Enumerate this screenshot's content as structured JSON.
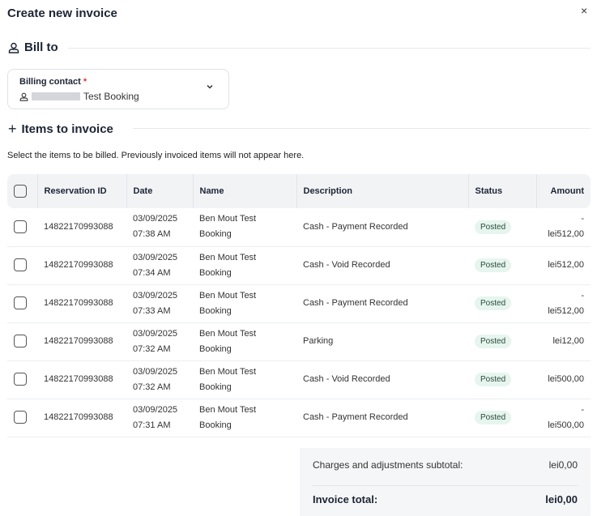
{
  "dialog": {
    "title": "Create new invoice",
    "close_icon": "×"
  },
  "bill_to": {
    "heading": "Bill to",
    "contact_label": "Billing contact",
    "required_mark": "*",
    "contact_value": "Test Booking"
  },
  "items": {
    "heading": "Items to invoice",
    "hint": "Select the items to be billed. Previously invoiced items will not appear here."
  },
  "table": {
    "columns": [
      "Reservation ID",
      "Date",
      "Name",
      "Description",
      "Status",
      "Amount"
    ],
    "rows": [
      {
        "id": "14822170993088",
        "date": "03/09/2025",
        "time": "07:38 AM",
        "name1": "Ben Mout Test",
        "name2": "Booking",
        "desc": "Cash - Payment Recorded",
        "status": "Posted",
        "sign": "-",
        "amount": "lei512,00"
      },
      {
        "id": "14822170993088",
        "date": "03/09/2025",
        "time": "07:34 AM",
        "name1": "Ben Mout Test",
        "name2": "Booking",
        "desc": "Cash - Void Recorded",
        "status": "Posted",
        "sign": "",
        "amount": "lei512,00"
      },
      {
        "id": "14822170993088",
        "date": "03/09/2025",
        "time": "07:33 AM",
        "name1": "Ben Mout Test",
        "name2": "Booking",
        "desc": "Cash - Payment Recorded",
        "status": "Posted",
        "sign": "-",
        "amount": "lei512,00"
      },
      {
        "id": "14822170993088",
        "date": "03/09/2025",
        "time": "07:32 AM",
        "name1": "Ben Mout Test",
        "name2": "Booking",
        "desc": "Parking",
        "status": "Posted",
        "sign": "",
        "amount": "lei12,00"
      },
      {
        "id": "14822170993088",
        "date": "03/09/2025",
        "time": "07:32 AM",
        "name1": "Ben Mout Test",
        "name2": "Booking",
        "desc": "Cash - Void Recorded",
        "status": "Posted",
        "sign": "",
        "amount": "lei500,00"
      },
      {
        "id": "14822170993088",
        "date": "03/09/2025",
        "time": "07:31 AM",
        "name1": "Ben Mout Test",
        "name2": "Booking",
        "desc": "Cash - Payment Recorded",
        "status": "Posted",
        "sign": "-",
        "amount": "lei500,00"
      }
    ]
  },
  "summary": {
    "subtotal_label": "Charges and adjustments subtotal:",
    "subtotal_value": "lei0,00",
    "total_label": "Invoice total:",
    "total_value": "lei0,00"
  },
  "colors": {
    "required": "#ee3333",
    "badge_bg": "#e6f5ee",
    "summary_bg": "#f5f6f8"
  }
}
